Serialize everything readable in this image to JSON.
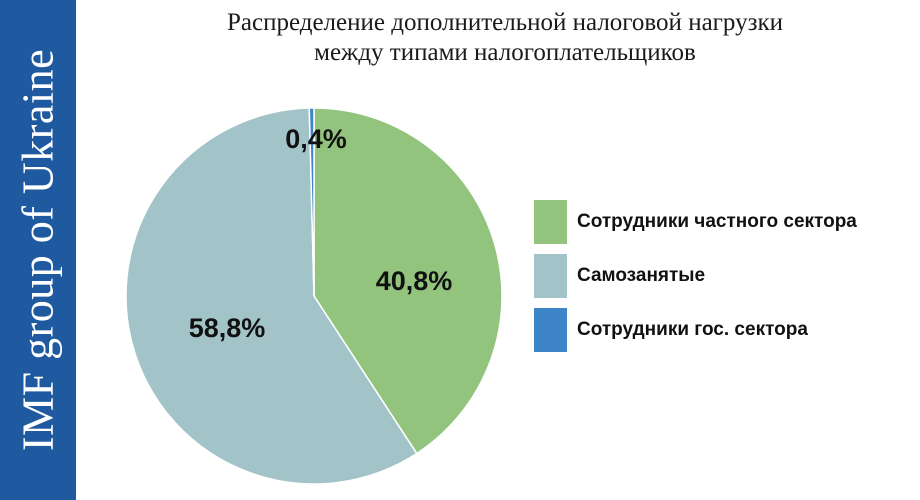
{
  "watermark": "IMF group of Ukraine",
  "title_lines": [
    "Распределение дополнительной налоговой нагрузки",
    "между типами налогоплательщиков"
  ],
  "colors": {
    "band": "#1f5aa0",
    "private_sector": "#93c47d",
    "self_employed": "#a2c4c9",
    "public_sector": "#3d85c6"
  },
  "chart_data": {
    "type": "pie",
    "title": "Распределение дополнительной налоговой нагрузки между типами налогоплательщиков",
    "slices": [
      {
        "name": "Сотрудники частного сектора",
        "value": 40.8,
        "label": "40,8%",
        "color": "#93c47d"
      },
      {
        "name": "Самозанятые",
        "value": 58.8,
        "label": "58,8%",
        "color": "#a2c4c9"
      },
      {
        "name": "Сотрудники гос. сектора",
        "value": 0.4,
        "label": "0,4%",
        "color": "#3d85c6"
      }
    ],
    "legend_position": "right"
  },
  "legend": [
    {
      "label": "Сотрудники частного сектора",
      "color": "#93c47d"
    },
    {
      "label": "Самозанятые",
      "color": "#a2c4c9"
    },
    {
      "label": "Сотрудники гос. сектора",
      "color": "#3d85c6"
    }
  ]
}
